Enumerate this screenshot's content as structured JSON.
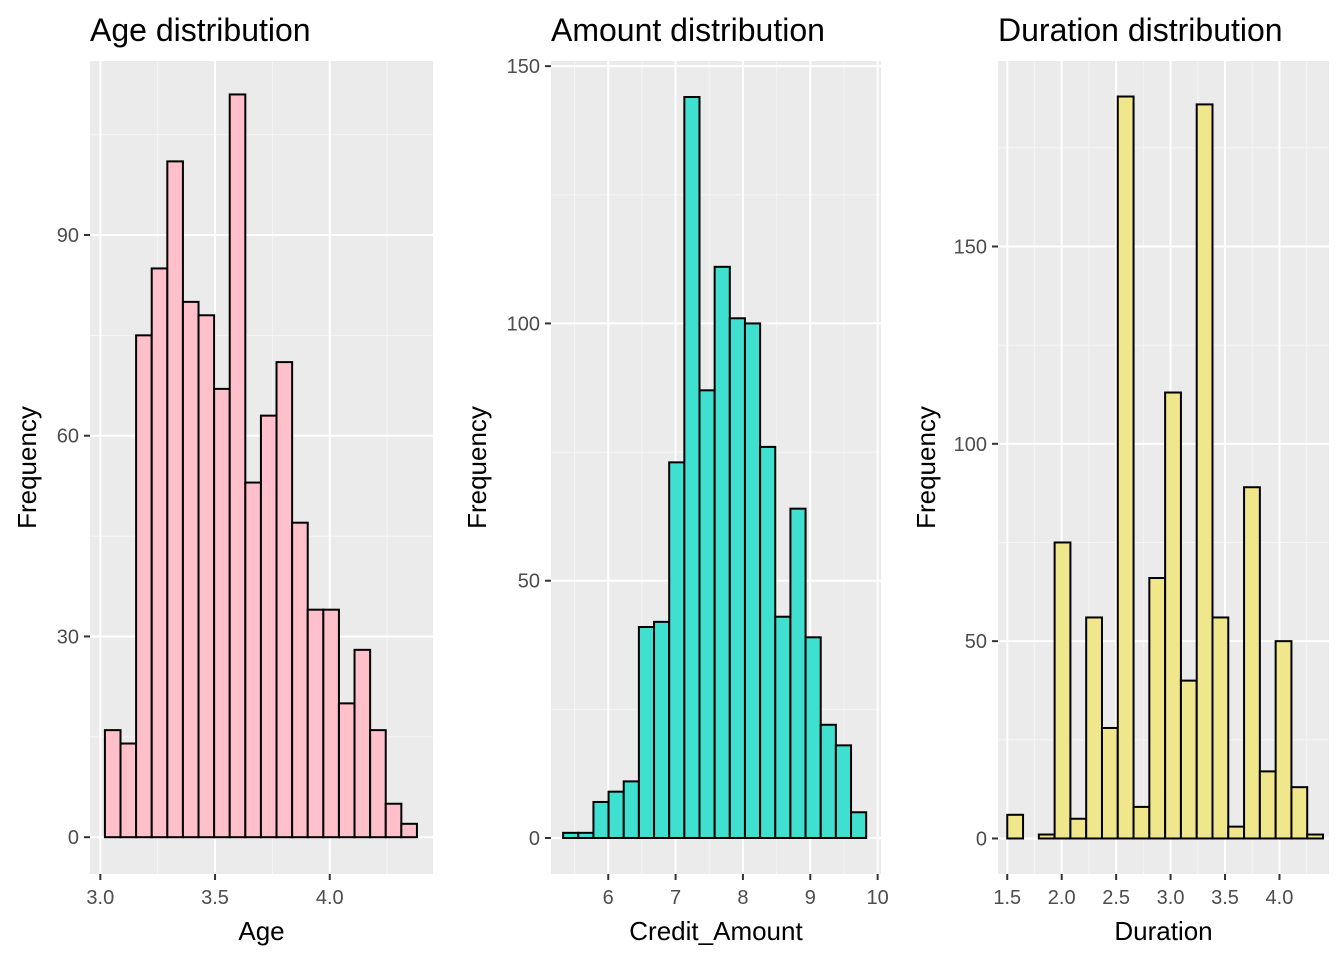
{
  "chart_data": [
    {
      "type": "bar",
      "title": "Age distribution",
      "xlabel": "Age",
      "ylabel": "Frequency",
      "fill": "#FFC0CB",
      "xlim": [
        2.955,
        4.45
      ],
      "ylim": [
        -5.5,
        116
      ],
      "xticks": [
        3.0,
        3.5,
        4.0
      ],
      "xtick_labels": [
        "3.0",
        "3.5",
        "4.0"
      ],
      "yticks": [
        0,
        30,
        60,
        90
      ],
      "ytick_labels": [
        "0",
        "30",
        "60",
        "90"
      ],
      "bins": {
        "start": 3.02,
        "width": 0.068,
        "counts": [
          16,
          14,
          75,
          85,
          101,
          80,
          78,
          67,
          111,
          53,
          63,
          71,
          47,
          34,
          34,
          20,
          28,
          16,
          5,
          2
        ]
      }
    },
    {
      "type": "bar",
      "title": "Amount distribution",
      "xlabel": "Credit_Amount",
      "ylabel": "Frequency",
      "fill": "#40E0D0",
      "xlim": [
        5.15,
        10.05
      ],
      "ylim": [
        -7,
        151
      ],
      "xticks": [
        6,
        7,
        8,
        9,
        10
      ],
      "xtick_labels": [
        "6",
        "7",
        "8",
        "9",
        "10"
      ],
      "yticks": [
        0,
        50,
        100,
        150
      ],
      "ytick_labels": [
        "0",
        "50",
        "100",
        "150"
      ],
      "bins": {
        "start": 5.33,
        "width": 0.225,
        "counts": [
          1,
          1,
          7,
          9,
          11,
          41,
          42,
          73,
          144,
          87,
          111,
          101,
          100,
          76,
          43,
          64,
          39,
          22,
          18,
          5
        ]
      }
    },
    {
      "type": "bar",
      "title": "Duration distribution",
      "xlabel": "Duration",
      "ylabel": "Frequency",
      "fill": "#F0E68C",
      "xlim": [
        1.415,
        4.455
      ],
      "ylim": [
        -9,
        197
      ],
      "xticks": [
        1.5,
        2.0,
        2.5,
        3.0,
        3.5,
        4.0
      ],
      "xtick_labels": [
        "1.5",
        "2.0",
        "2.5",
        "3.0",
        "3.5",
        "4.0"
      ],
      "yticks": [
        0,
        50,
        100,
        150
      ],
      "ytick_labels": [
        "0",
        "50",
        "100",
        "150"
      ],
      "bins": {
        "start": 1.5,
        "width": 0.145,
        "counts": [
          6,
          0,
          1,
          75,
          5,
          56,
          28,
          188,
          8,
          66,
          113,
          40,
          186,
          56,
          3,
          89,
          17,
          50,
          13,
          1
        ]
      }
    }
  ]
}
